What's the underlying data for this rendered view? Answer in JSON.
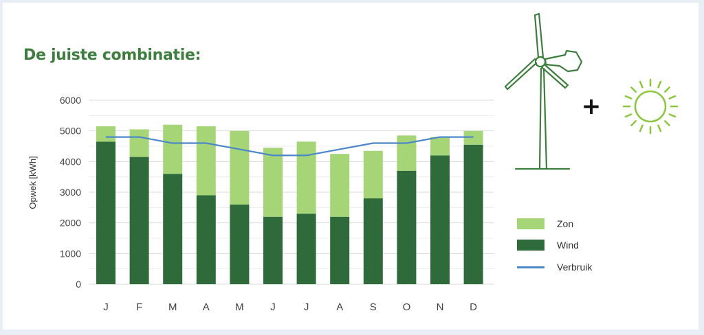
{
  "title": "De juiste combinatie:",
  "plus": "+",
  "colors": {
    "zon": "#a6d578",
    "wind": "#2f6b3a",
    "verbruik": "#4a86c8",
    "title": "#3d7d3e"
  },
  "icons": [
    "wind-turbine-icon",
    "sun-icon"
  ],
  "legend": [
    {
      "key": "zon",
      "label": "Zon"
    },
    {
      "key": "wind",
      "label": "Wind"
    },
    {
      "key": "verbruik",
      "label": "Verbruik"
    }
  ],
  "chart_data": {
    "type": "bar",
    "stacked": true,
    "categories": [
      "J",
      "F",
      "M",
      "A",
      "M",
      "J",
      "J",
      "A",
      "S",
      "O",
      "N",
      "D"
    ],
    "ylabel": "Opwek [kWh]",
    "ylim": [
      0,
      6000
    ],
    "yticks": [
      0,
      1000,
      2000,
      3000,
      4000,
      5000,
      6000
    ],
    "grid": true,
    "legend_position": "right",
    "series": [
      {
        "name": "Wind",
        "type": "bar",
        "values": [
          4650,
          4150,
          3600,
          2900,
          2600,
          2200,
          2300,
          2200,
          2800,
          3700,
          4200,
          4550
        ]
      },
      {
        "name": "Zon",
        "type": "bar",
        "values": [
          500,
          900,
          1600,
          2250,
          2400,
          2250,
          2350,
          2050,
          1550,
          1150,
          600,
          450
        ]
      },
      {
        "name": "Verbruik",
        "type": "line",
        "values": [
          4800,
          4800,
          4600,
          4600,
          4400,
          4200,
          4200,
          4400,
          4600,
          4600,
          4800,
          4800
        ]
      }
    ]
  }
}
